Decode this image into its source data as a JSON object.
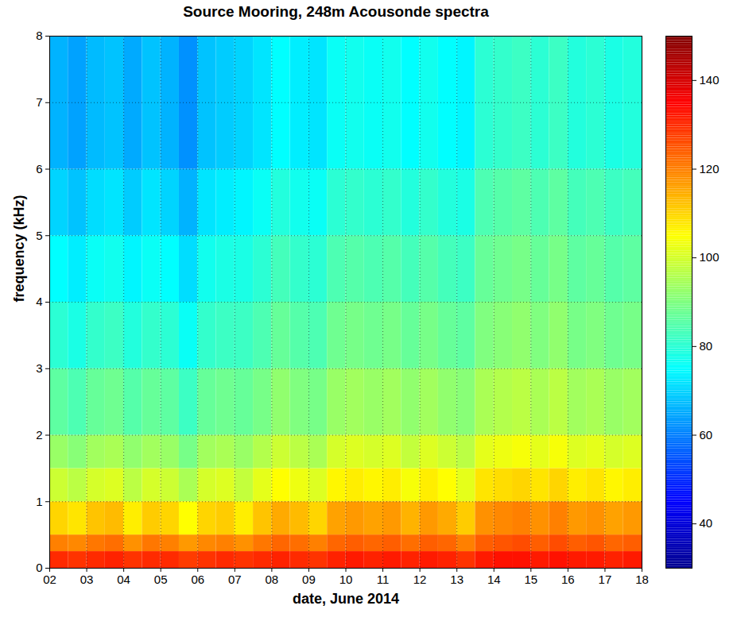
{
  "chart_data": {
    "type": "heatmap",
    "title": "Source Mooring, 248m Acousonde spectra",
    "x_label": "date, June 2014",
    "y_label": "frequency (kHz)",
    "xlim": [
      2,
      18
    ],
    "ylim": [
      0,
      8
    ],
    "xticks": [
      {
        "value": 2,
        "label": "02"
      },
      {
        "value": 3,
        "label": "03"
      },
      {
        "value": 4,
        "label": "04"
      },
      {
        "value": 5,
        "label": "05"
      },
      {
        "value": 6,
        "label": "06"
      },
      {
        "value": 7,
        "label": "07"
      },
      {
        "value": 8,
        "label": "08"
      },
      {
        "value": 9,
        "label": "09"
      },
      10,
      11,
      12,
      13,
      14,
      15,
      16,
      17,
      18
    ],
    "yticks": [
      0,
      1,
      2,
      3,
      4,
      5,
      6,
      7,
      8
    ],
    "grid": true,
    "color": "jet",
    "cells": {
      "x_edges": [
        2,
        2.5,
        3,
        3.5,
        4,
        4.5,
        5,
        5.5,
        6,
        6.5,
        7,
        7.5,
        8,
        8.5,
        9,
        9.5,
        10,
        10.5,
        11,
        11.5,
        12,
        12.5,
        13,
        13.5,
        14,
        14.5,
        15,
        15.5,
        16,
        16.5,
        17,
        17.5,
        18
      ],
      "y_edges": [
        0,
        0.25,
        0.5,
        1,
        1.5,
        2,
        3,
        4,
        5,
        6,
        8
      ],
      "values": [
        [
          130,
          120,
          110,
          99,
          93,
          86,
          80,
          75,
          70,
          66
        ],
        [
          129,
          119,
          108,
          97,
          91,
          84,
          78,
          73,
          68,
          64
        ],
        [
          130,
          121,
          112,
          100,
          94,
          87,
          81,
          76,
          71,
          67
        ],
        [
          131,
          122,
          113,
          101,
          95,
          88,
          82,
          77,
          72,
          68
        ],
        [
          129,
          118,
          107,
          97,
          92,
          85,
          79,
          74,
          69,
          65
        ],
        [
          130,
          121,
          111,
          100,
          94,
          87,
          81,
          76,
          72,
          68
        ],
        [
          130,
          120,
          110,
          99,
          93,
          86,
          80,
          75,
          70,
          66
        ],
        [
          128,
          117,
          105,
          95,
          89,
          82,
          76,
          71,
          66,
          62
        ],
        [
          129,
          119,
          110,
          100,
          94,
          87,
          81,
          77,
          72,
          68
        ],
        [
          130,
          120,
          111,
          101,
          95,
          88,
          82,
          78,
          73,
          69
        ],
        [
          129,
          118,
          107,
          98,
          93,
          87,
          82,
          78,
          74,
          70
        ],
        [
          130,
          121,
          112,
          102,
          96,
          89,
          84,
          80,
          76,
          72
        ],
        [
          131,
          123,
          115,
          105,
          99,
          92,
          87,
          83,
          79,
          75
        ],
        [
          130,
          122,
          113,
          103,
          97,
          90,
          85,
          81,
          77,
          73
        ],
        [
          129,
          120,
          110,
          101,
          95,
          89,
          84,
          80,
          76,
          72
        ],
        [
          131,
          123,
          116,
          106,
          100,
          93,
          88,
          84,
          80,
          76
        ],
        [
          132,
          124,
          117,
          107,
          101,
          94,
          89,
          85,
          81,
          77
        ],
        [
          131,
          123,
          116,
          106,
          100,
          93,
          88,
          84,
          80,
          76
        ],
        [
          132,
          124,
          117,
          107,
          101,
          94,
          89,
          85,
          81,
          77
        ],
        [
          131,
          122,
          114,
          104,
          98,
          92,
          87,
          83,
          79,
          75
        ],
        [
          132,
          124,
          117,
          107,
          101,
          94,
          89,
          85,
          81,
          77
        ],
        [
          131,
          123,
          115,
          105,
          99,
          92,
          87,
          83,
          79,
          75
        ],
        [
          129,
          120,
          111,
          102,
          97,
          91,
          86,
          82,
          78,
          74
        ],
        [
          132,
          124,
          118,
          108,
          102,
          95,
          90,
          87,
          84,
          80
        ],
        [
          133,
          125,
          119,
          109,
          103,
          96,
          91,
          88,
          85,
          81
        ],
        [
          133,
          126,
          120,
          110,
          104,
          97,
          92,
          89,
          86,
          82
        ],
        [
          132,
          124,
          118,
          108,
          102,
          95,
          90,
          87,
          84,
          80
        ],
        [
          133,
          126,
          120,
          110,
          104,
          97,
          92,
          89,
          86,
          82
        ],
        [
          132,
          124,
          117,
          107,
          101,
          94,
          89,
          86,
          83,
          79
        ],
        [
          132,
          125,
          118,
          108,
          102,
          95,
          90,
          87,
          84,
          80
        ],
        [
          131,
          123,
          116,
          106,
          100,
          93,
          88,
          85,
          82,
          78
        ],
        [
          132,
          124,
          117,
          107,
          101,
          94,
          89,
          86,
          83,
          79
        ]
      ]
    },
    "colorbar": {
      "range": [
        30,
        150
      ],
      "ticks": [
        40,
        60,
        80,
        100,
        120,
        140
      ]
    }
  }
}
